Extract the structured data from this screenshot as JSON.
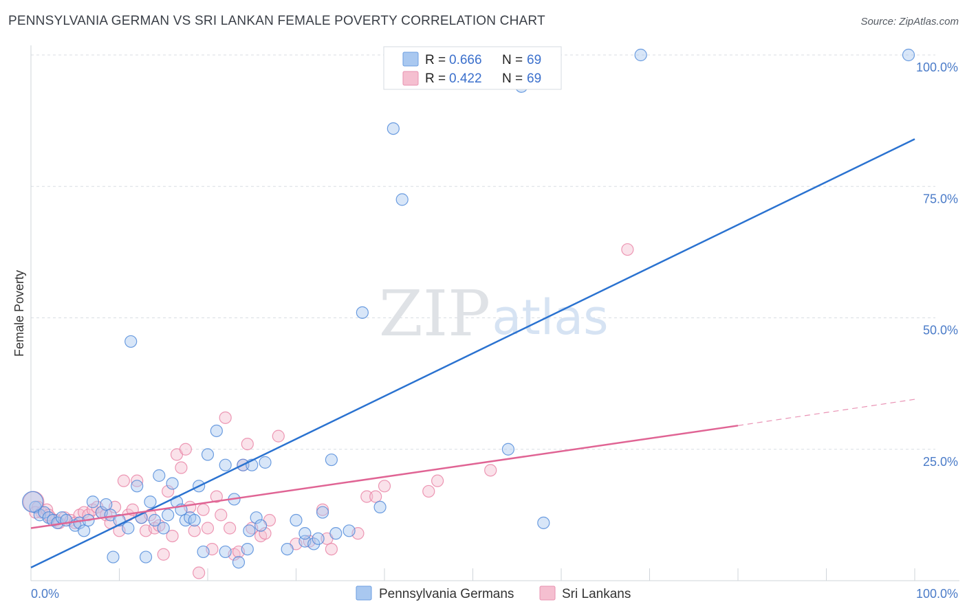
{
  "title": "PENNSYLVANIA GERMAN VS SRI LANKAN FEMALE POVERTY CORRELATION CHART",
  "source": "Source: ZipAtlas.com",
  "watermark": {
    "zip": "ZIP",
    "atlas": "atlas"
  },
  "colors": {
    "blue": "#4a86d8",
    "blue_fill": "#a9c8f0",
    "blue_line": "#2a72d0",
    "pink": "#e87fa3",
    "pink_fill": "#f5bfd0",
    "pink_line": "#e06494",
    "grid": "#d8dde3",
    "tick_label": "#4a7bc8"
  },
  "legend": {
    "r_label": "R =",
    "n_label": "N =",
    "series": [
      {
        "name": "Pennsylvania Germans",
        "r": "0.666",
        "n": "69"
      },
      {
        "name": "Sri Lankans",
        "r": "0.422",
        "n": "69"
      }
    ]
  },
  "chart_data": {
    "type": "scatter",
    "title": "PENNSYLVANIA GERMAN VS SRI LANKAN FEMALE POVERTY CORRELATION CHART",
    "xlabel": "",
    "ylabel": "Female Poverty",
    "xlim": [
      0,
      100
    ],
    "ylim": [
      0,
      100
    ],
    "x_ticks": [
      {
        "value": 0,
        "label": "0.0%"
      },
      {
        "value": 100,
        "label": "100.0%"
      }
    ],
    "y_ticks": [
      {
        "value": 25,
        "label": "25.0%"
      },
      {
        "value": 50,
        "label": "50.0%"
      },
      {
        "value": 75,
        "label": "75.0%"
      },
      {
        "value": 100,
        "label": "100.0%"
      }
    ],
    "series": [
      {
        "name": "Pennsylvania Germans",
        "points": [
          [
            0.5,
            14
          ],
          [
            1,
            12.5
          ],
          [
            1.5,
            13
          ],
          [
            2,
            12
          ],
          [
            2.5,
            11.5
          ],
          [
            3,
            11
          ],
          [
            3.5,
            12
          ],
          [
            4,
            11.5
          ],
          [
            5,
            10.5
          ],
          [
            5.5,
            11
          ],
          [
            6,
            9.5
          ],
          [
            6.5,
            11.5
          ],
          [
            7,
            15
          ],
          [
            8,
            13
          ],
          [
            8.5,
            14.5
          ],
          [
            9,
            12.5
          ],
          [
            9.3,
            4.5
          ],
          [
            10,
            11.5
          ],
          [
            11,
            10
          ],
          [
            11.3,
            45.5
          ],
          [
            12,
            18
          ],
          [
            12.5,
            12
          ],
          [
            13,
            4.5
          ],
          [
            13.5,
            15
          ],
          [
            14,
            11.5
          ],
          [
            14.5,
            20
          ],
          [
            15,
            10
          ],
          [
            15.5,
            12.5
          ],
          [
            16,
            18.5
          ],
          [
            16.5,
            15
          ],
          [
            17,
            13.5
          ],
          [
            17.5,
            11.5
          ],
          [
            18,
            12
          ],
          [
            18.5,
            11.5
          ],
          [
            19,
            18
          ],
          [
            19.5,
            5.5
          ],
          [
            20,
            24
          ],
          [
            21,
            28.5
          ],
          [
            22,
            22
          ],
          [
            22,
            5.5
          ],
          [
            23,
            15.5
          ],
          [
            23.5,
            3.5
          ],
          [
            24,
            22
          ],
          [
            24.5,
            6
          ],
          [
            24.7,
            9.5
          ],
          [
            25,
            22
          ],
          [
            25.5,
            12
          ],
          [
            26,
            10.5
          ],
          [
            26.5,
            22.5
          ],
          [
            29,
            6
          ],
          [
            30,
            11.5
          ],
          [
            31,
            7.5
          ],
          [
            31,
            9
          ],
          [
            32,
            7
          ],
          [
            32.5,
            8
          ],
          [
            33,
            13
          ],
          [
            34,
            23
          ],
          [
            34.5,
            9
          ],
          [
            36,
            9.5
          ],
          [
            37.5,
            51
          ],
          [
            39.5,
            14
          ],
          [
            41,
            86
          ],
          [
            42,
            72.5
          ],
          [
            55.5,
            94
          ],
          [
            54,
            25
          ],
          [
            58,
            11
          ],
          [
            69,
            100
          ],
          [
            99.3,
            100
          ],
          [
            0.2,
            15
          ]
        ],
        "r": 0.666,
        "n": 69
      },
      {
        "name": "Sri Lankans",
        "points": [
          [
            0.3,
            15
          ],
          [
            0.8,
            14
          ],
          [
            1.2,
            13
          ],
          [
            1.8,
            13.5
          ],
          [
            2.2,
            12
          ],
          [
            2.8,
            11.5
          ],
          [
            3.2,
            11
          ],
          [
            3.8,
            12
          ],
          [
            4.5,
            11.5
          ],
          [
            5,
            11
          ],
          [
            5.5,
            12.5
          ],
          [
            6,
            13
          ],
          [
            6.5,
            12.5
          ],
          [
            7,
            13.5
          ],
          [
            7.5,
            14
          ],
          [
            8,
            13
          ],
          [
            8.5,
            12.5
          ],
          [
            9,
            11
          ],
          [
            9.5,
            14
          ],
          [
            10,
            9.5
          ],
          [
            10.5,
            19
          ],
          [
            11,
            12.5
          ],
          [
            11.5,
            13.5
          ],
          [
            12,
            19
          ],
          [
            12.5,
            12
          ],
          [
            13,
            9.5
          ],
          [
            13.5,
            12.5
          ],
          [
            14,
            10
          ],
          [
            14.5,
            10.5
          ],
          [
            15,
            5
          ],
          [
            15.5,
            17
          ],
          [
            16,
            8.5
          ],
          [
            16.5,
            24
          ],
          [
            17,
            21.5
          ],
          [
            17.5,
            25
          ],
          [
            18,
            14
          ],
          [
            18.5,
            9.5
          ],
          [
            19,
            1.5
          ],
          [
            19.5,
            13.5
          ],
          [
            20,
            10
          ],
          [
            20.5,
            6
          ],
          [
            21,
            16
          ],
          [
            21.5,
            12.5
          ],
          [
            22,
            31
          ],
          [
            22.5,
            10
          ],
          [
            23,
            5
          ],
          [
            23.5,
            5.5
          ],
          [
            24,
            22
          ],
          [
            24.5,
            26
          ],
          [
            25,
            10
          ],
          [
            26,
            8.5
          ],
          [
            26.5,
            9
          ],
          [
            27,
            11.5
          ],
          [
            28,
            27.5
          ],
          [
            30,
            7
          ],
          [
            31.5,
            7.5
          ],
          [
            33,
            13.5
          ],
          [
            33.5,
            8
          ],
          [
            34,
            6
          ],
          [
            37,
            9
          ],
          [
            38,
            16
          ],
          [
            39,
            16
          ],
          [
            40,
            18
          ],
          [
            45,
            17
          ],
          [
            46,
            19
          ],
          [
            52,
            21
          ],
          [
            67.5,
            63
          ],
          [
            0.5,
            13
          ],
          [
            2,
            12.5
          ]
        ],
        "r": 0.422,
        "n": 69
      }
    ],
    "trend_lines": [
      {
        "series": "Pennsylvania Germans",
        "x0": 0,
        "y0": 2.5,
        "x1": 100,
        "y1": 84,
        "style": "solid"
      },
      {
        "series": "Sri Lankans",
        "x0": 0,
        "y0": 10,
        "x1": 80,
        "y1": 29.5,
        "style": "solid"
      },
      {
        "series": "Sri Lankans",
        "x0": 80,
        "y0": 29.5,
        "x1": 100,
        "y1": 34.5,
        "style": "dashed"
      }
    ]
  }
}
